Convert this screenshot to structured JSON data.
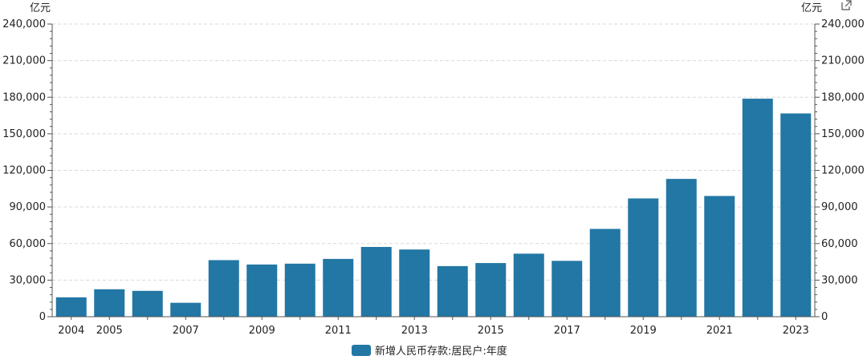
{
  "chart_data": {
    "type": "bar",
    "left_unit": "亿元",
    "right_unit": "亿元",
    "categories": [
      "2004",
      "2005",
      "2006",
      "2007",
      "2008",
      "2009",
      "2010",
      "2011",
      "2012",
      "2013",
      "2014",
      "2015",
      "2016",
      "2017",
      "2018",
      "2019",
      "2020",
      "2021",
      "2022",
      "2023"
    ],
    "x_tick_labels": [
      "2004",
      "2005",
      "",
      "2007",
      "",
      "2009",
      "",
      "2011",
      "",
      "2013",
      "",
      "2015",
      "",
      "2017",
      "",
      "2019",
      "",
      "2021",
      "",
      "2023"
    ],
    "series": [
      {
        "name": "新增人民币存款:居民户:年度",
        "color": "#2277a4",
        "values": [
          15900,
          22500,
          21200,
          11400,
          46400,
          42800,
          43500,
          47400,
          57200,
          55100,
          41500,
          44000,
          51700,
          45800,
          72000,
          97000,
          113000,
          99000,
          178800,
          166700
        ]
      }
    ],
    "ylim": [
      0,
      240000
    ],
    "y_ticks": [
      0,
      30000,
      60000,
      90000,
      120000,
      150000,
      180000,
      210000,
      240000
    ],
    "y_tick_labels": [
      "0",
      "30,000",
      "60,000",
      "90,000",
      "120,000",
      "150,000",
      "180,000",
      "210,000",
      "240,000"
    ],
    "grid": true,
    "legend_position": "bottom-center"
  },
  "toolbar": {
    "export_icon": "external-link-icon"
  }
}
